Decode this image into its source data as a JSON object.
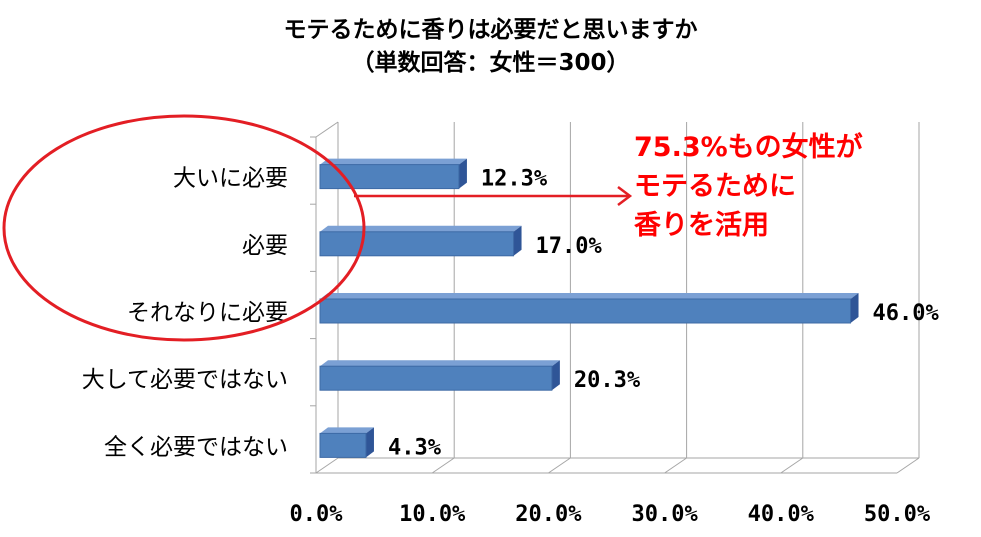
{
  "chart_data": {
    "type": "bar",
    "orientation": "horizontal",
    "title": "モテるために香りは必要だと思いますか",
    "subtitle": "（単数回答：女性＝300）",
    "categories": [
      "大いに必要",
      "必要",
      "それなりに必要",
      "大して必要ではない",
      "全く必要ではない"
    ],
    "values": [
      12.3,
      17.0,
      46.0,
      20.3,
      4.3
    ],
    "data_labels": [
      "12.3%",
      "17.0%",
      "46.0%",
      "20.3%",
      "4.3%"
    ],
    "xlim": [
      0,
      50
    ],
    "x_ticks": [
      "0.0%",
      "10.0%",
      "20.0%",
      "30.0%",
      "40.0%",
      "50.0%"
    ],
    "grid": true,
    "style": "3d",
    "bar_color": "#4f81bd",
    "annotation": {
      "lines": [
        "75.3%もの女性が",
        "モテるために",
        "香りを活用"
      ],
      "color": "#ff0000",
      "highlighted_categories": [
        "大いに必要",
        "必要",
        "それなりに必要"
      ]
    }
  }
}
